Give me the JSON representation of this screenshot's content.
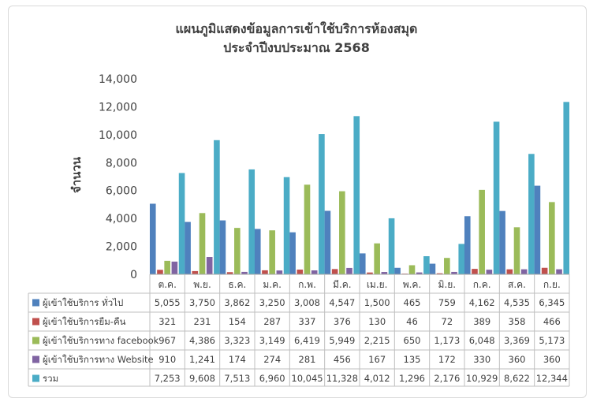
{
  "chart_data": {
    "type": "bar",
    "title": "แผนภูมิแสดงข้อมูลการเข้าใช้บริการห้องสมุด",
    "subtitle": "ประจำปีงบประมาณ 2568",
    "ylabel": "จำนวน",
    "xlabel": "",
    "ylim": [
      0,
      14000
    ],
    "yticks": [
      "0",
      "2,000",
      "4,000",
      "6,000",
      "8,000",
      "10,000",
      "12,000",
      "14,000"
    ],
    "grid": false,
    "legend": "data-table",
    "categories": [
      "ต.ค.",
      "พ.ย.",
      "ธ.ค.",
      "ม.ค.",
      "ก.พ.",
      "มี.ค.",
      "เม.ย.",
      "พ.ค.",
      "มิ.ย.",
      "ก.ค.",
      "ส.ค.",
      "ก.ย."
    ],
    "series": [
      {
        "name": "ผู้เข้าใช้บริการ ทั่วไป",
        "color": "#4f81bd",
        "values": [
          5055,
          3750,
          3862,
          3250,
          3008,
          4547,
          1500,
          465,
          759,
          4162,
          4535,
          6345
        ],
        "labels": [
          "5,055",
          "3,750",
          "3,862",
          "3,250",
          "3,008",
          "4,547",
          "1,500",
          "465",
          "759",
          "4,162",
          "4,535",
          "6,345"
        ]
      },
      {
        "name": "ผู้เข้าใช้บริการยืม-คืน",
        "color": "#c0504d",
        "values": [
          321,
          231,
          154,
          287,
          337,
          376,
          130,
          46,
          72,
          389,
          358,
          466
        ],
        "labels": [
          "321",
          "231",
          "154",
          "287",
          "337",
          "376",
          "130",
          "46",
          "72",
          "389",
          "358",
          "466"
        ]
      },
      {
        "name": "ผู้เข้าใช้บริการทาง facebook",
        "color": "#9bbb59",
        "values": [
          967,
          4386,
          3323,
          3149,
          6419,
          5949,
          2215,
          650,
          1173,
          6048,
          3369,
          5173
        ],
        "labels": [
          "967",
          "4,386",
          "3,323",
          "3,149",
          "6,419",
          "5,949",
          "2,215",
          "650",
          "1,173",
          "6,048",
          "3,369",
          "5,173"
        ]
      },
      {
        "name": "ผู้เข้าใช้บริการทาง Website",
        "color": "#8064a2",
        "values": [
          910,
          1241,
          174,
          274,
          281,
          456,
          167,
          135,
          172,
          330,
          360,
          360
        ],
        "labels": [
          "910",
          "1,241",
          "174",
          "274",
          "281",
          "456",
          "167",
          "135",
          "172",
          "330",
          "360",
          "360"
        ]
      },
      {
        "name": "รวม",
        "color": "#4bacc6",
        "values": [
          7253,
          9608,
          7513,
          6960,
          10045,
          11328,
          4012,
          1296,
          2176,
          10929,
          8622,
          12344
        ],
        "labels": [
          "7,253",
          "9,608",
          "7,513",
          "6,960",
          "10,045",
          "11,328",
          "4,012",
          "1,296",
          "2,176",
          "10,929",
          "8,622",
          "12,344"
        ]
      }
    ]
  }
}
